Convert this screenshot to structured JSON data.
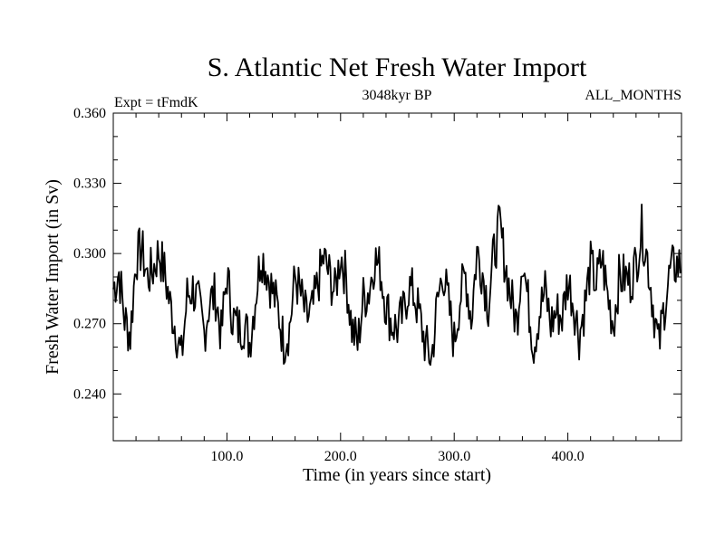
{
  "chart_data": {
    "type": "line",
    "title": "S. Atlantic Net Fresh Water Import",
    "subtitle": "3048kyr BP",
    "left_note": "Expt = tFmdK",
    "right_note": "ALL_MONTHS",
    "xlabel": "Time (in years since start)",
    "ylabel": "Fresh Water Import (in Sv)",
    "xlim": [
      0,
      500
    ],
    "ylim": [
      0.22,
      0.36
    ],
    "x_ticks": [
      100,
      200,
      300,
      400
    ],
    "x_tick_labels": [
      "100.0",
      "200.0",
      "300.0",
      "400.0"
    ],
    "y_ticks": [
      0.24,
      0.27,
      0.3,
      0.33,
      0.36
    ],
    "y_tick_labels": [
      "0.240",
      "0.270",
      "0.300",
      "0.330",
      "0.360"
    ],
    "grid": false,
    "series": [
      {
        "name": "Fresh Water Import",
        "x_start": 0,
        "x_step": 5,
        "values": [
          0.285,
          0.292,
          0.272,
          0.265,
          0.298,
          0.302,
          0.29,
          0.293,
          0.301,
          0.292,
          0.278,
          0.268,
          0.255,
          0.282,
          0.285,
          0.278,
          0.266,
          0.28,
          0.282,
          0.265,
          0.291,
          0.273,
          0.268,
          0.27,
          0.262,
          0.281,
          0.3,
          0.293,
          0.284,
          0.276,
          0.262,
          0.268,
          0.29,
          0.282,
          0.272,
          0.275,
          0.287,
          0.298,
          0.291,
          0.283,
          0.3,
          0.289,
          0.268,
          0.261,
          0.281,
          0.284,
          0.298,
          0.293,
          0.278,
          0.27,
          0.268,
          0.274,
          0.286,
          0.282,
          0.272,
          0.26,
          0.255,
          0.278,
          0.293,
          0.278,
          0.262,
          0.281,
          0.291,
          0.272,
          0.301,
          0.292,
          0.278,
          0.3,
          0.312,
          0.295,
          0.281,
          0.27,
          0.3,
          0.279,
          0.261,
          0.275,
          0.284,
          0.27,
          0.275,
          0.273,
          0.289,
          0.279,
          0.265,
          0.278,
          0.295,
          0.287,
          0.298,
          0.282,
          0.27,
          0.289,
          0.29,
          0.288,
          0.296,
          0.31,
          0.298,
          0.278,
          0.26,
          0.278,
          0.292,
          0.295
        ]
      }
    ]
  }
}
